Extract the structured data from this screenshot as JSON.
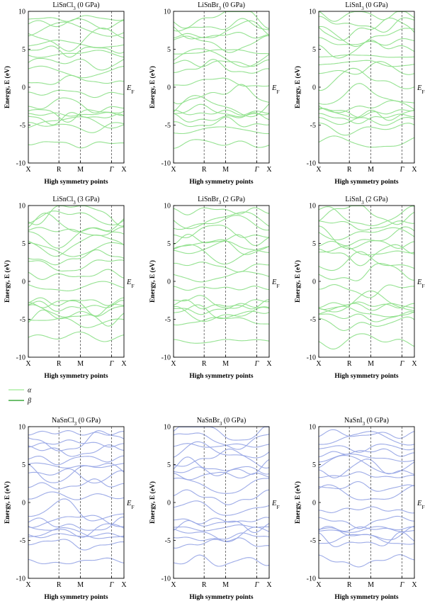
{
  "figure": {
    "ef_label": "E",
    "ef_sub": "F",
    "legend": [
      {
        "label": "α",
        "color": "#aeeea6"
      },
      {
        "label": "β",
        "color": "#3faa3f"
      }
    ]
  },
  "chart_data": [
    {
      "type": "line",
      "title": "LiSnCl",
      "title_sub": "3",
      "title_suffix": " (0 GPa)",
      "xlabel": "High symmetry points",
      "ylabel": "Energy, E (eV)",
      "ylim": [
        -10,
        10
      ],
      "yticks": [
        -10,
        -5,
        0,
        5,
        10
      ],
      "x_ticks": [
        "X",
        "R",
        "M",
        "Γ",
        "X"
      ],
      "color": "#8fe08b"
    },
    {
      "type": "line",
      "title": "LiSnBr",
      "title_sub": "3",
      "title_suffix": " (0 GPa)",
      "xlabel": "High symmetry points",
      "ylabel": "Energy, E (eV)",
      "ylim": [
        -10,
        10
      ],
      "yticks": [
        -10,
        -5,
        0,
        5,
        10
      ],
      "x_ticks": [
        "X",
        "R",
        "M",
        "Γ",
        "X"
      ],
      "color": "#8fe08b"
    },
    {
      "type": "line",
      "title": "LiSnI",
      "title_sub": "3",
      "title_suffix": " (0 GPa)",
      "xlabel": "High symmetry points",
      "ylabel": "Energy, E (eV)",
      "ylim": [
        -10,
        10
      ],
      "yticks": [
        -10,
        -5,
        0,
        5,
        10
      ],
      "x_ticks": [
        "X",
        "R",
        "M",
        "Γ",
        "X"
      ],
      "color": "#8fe08b"
    },
    {
      "type": "line",
      "title": "LiSnCl",
      "title_sub": "3",
      "title_suffix": " (3 GPa)",
      "xlabel": "High symmetry points",
      "ylabel": "Energy, E (eV)",
      "ylim": [
        -10,
        10
      ],
      "yticks": [
        -10,
        -5,
        0,
        5,
        10
      ],
      "x_ticks": [
        "X",
        "R",
        "M",
        "Γ",
        "X"
      ],
      "color": "#8fe08b"
    },
    {
      "type": "line",
      "title": "LiSnBr",
      "title_sub": "3",
      "title_suffix": " (2 GPa)",
      "xlabel": "High symmetry points",
      "ylabel": "Energy, E (eV)",
      "ylim": [
        -10,
        10
      ],
      "yticks": [
        -10,
        -5,
        0,
        5,
        10
      ],
      "x_ticks": [
        "X",
        "R",
        "M",
        "Γ",
        "X"
      ],
      "color": "#8fe08b"
    },
    {
      "type": "line",
      "title": "LiSnI",
      "title_sub": "3",
      "title_suffix": " (2 GPa)",
      "xlabel": "High symmetry points",
      "ylabel": "Energy, E (eV)",
      "ylim": [
        -10,
        10
      ],
      "yticks": [
        -10,
        -5,
        0,
        5,
        10
      ],
      "x_ticks": [
        "X",
        "R",
        "M",
        "Γ",
        "X"
      ],
      "color": "#8fe08b"
    },
    {
      "type": "line",
      "title": "NaSnCl",
      "title_sub": "3",
      "title_suffix": " (0 GPa)",
      "xlabel": "High symmetry points",
      "ylabel": "Energy, E (eV)",
      "ylim": [
        -10,
        10
      ],
      "yticks": [
        -10,
        -5,
        0,
        5,
        10
      ],
      "x_ticks": [
        "X",
        "R",
        "M",
        "Γ",
        "X"
      ],
      "color": "#98a6e6"
    },
    {
      "type": "line",
      "title": "NaSnBr",
      "title_sub": "3",
      "title_suffix": " (0 GPa)",
      "xlabel": "High symmetry points",
      "ylabel": "Energy, E (eV)",
      "ylim": [
        -10,
        10
      ],
      "yticks": [
        -10,
        -5,
        0,
        5,
        10
      ],
      "x_ticks": [
        "X",
        "R",
        "M",
        "Γ",
        "X"
      ],
      "color": "#98a6e6"
    },
    {
      "type": "line",
      "title": "NaSnI",
      "title_sub": "3",
      "title_suffix": " (0 GPa)",
      "xlabel": "High symmetry points",
      "ylabel": "Energy, E (eV)",
      "ylim": [
        -10,
        10
      ],
      "yticks": [
        -10,
        -5,
        0,
        5,
        10
      ],
      "x_ticks": [
        "X",
        "R",
        "M",
        "Γ",
        "X"
      ],
      "color": "#98a6e6"
    }
  ]
}
